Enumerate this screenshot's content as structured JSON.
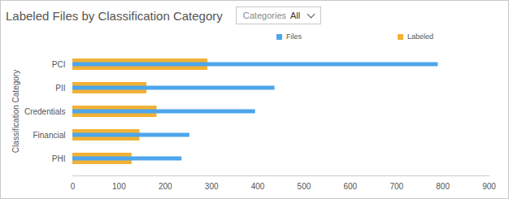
{
  "chart_data": {
    "type": "bar",
    "orientation": "horizontal",
    "title": "Labeled Files by Classification Category",
    "dropdown": {
      "label": "Categories",
      "value": "All"
    },
    "y_label": "Classification Category",
    "categories": [
      "PCI",
      "PII",
      "Credentials",
      "Financial",
      "PHI"
    ],
    "series": [
      {
        "name": "Files",
        "color": "#4da6ec",
        "values": [
          790,
          437,
          395,
          253,
          236
        ]
      },
      {
        "name": "Labeled",
        "color": "#f2b134",
        "values": [
          292,
          160,
          182,
          145,
          128
        ]
      }
    ],
    "xlim": [
      0,
      900
    ],
    "xticks": [
      0,
      100,
      200,
      300,
      400,
      500,
      600,
      700,
      800,
      900
    ],
    "legend": "top",
    "grid": false
  }
}
